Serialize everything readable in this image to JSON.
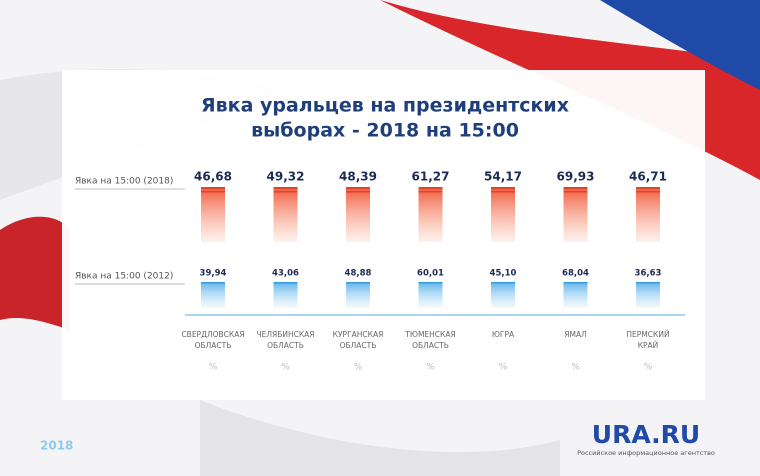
{
  "title": [
    "Явка уральцев на президентских",
    "выборах - 2018 на 15:00"
  ],
  "rows": [
    {
      "label": "Явка на 15:00 (2018)"
    },
    {
      "label": "Явка на 15:00 (2012)"
    }
  ],
  "regions": [
    {
      "name": [
        "СВЕРДЛОВСКАЯ",
        "ОБЛАСТЬ"
      ],
      "v2018": "46,68",
      "v2012": "39,94",
      "unit": "%"
    },
    {
      "name": [
        "ЧЕЛЯБИНСКАЯ",
        "ОБЛАСТЬ"
      ],
      "v2018": "49,32",
      "v2012": "43,06",
      "unit": "%"
    },
    {
      "name": [
        "КУРГАНСКАЯ",
        "ОБЛАСТЬ"
      ],
      "v2018": "48,39",
      "v2012": "48,88",
      "unit": "%"
    },
    {
      "name": [
        "ТЮМЕНСКАЯ",
        "ОБЛАСТЬ"
      ],
      "v2018": "61,27",
      "v2012": "60,01",
      "unit": "%"
    },
    {
      "name": [
        "ЮГРА"
      ],
      "v2018": "54,17",
      "v2012": "45,10",
      "unit": "%"
    },
    {
      "name": [
        "ЯМАЛ"
      ],
      "v2018": "69,93",
      "v2012": "68,04",
      "unit": "%"
    },
    {
      "name": [
        "ПЕРМСКИЙ",
        "КРАЙ"
      ],
      "v2018": "46,71",
      "v2012": "36,63",
      "unit": "%"
    }
  ],
  "footer": {
    "year": "2018",
    "logo": "URA.RU",
    "tagline": "Российское информационное агентство"
  }
}
